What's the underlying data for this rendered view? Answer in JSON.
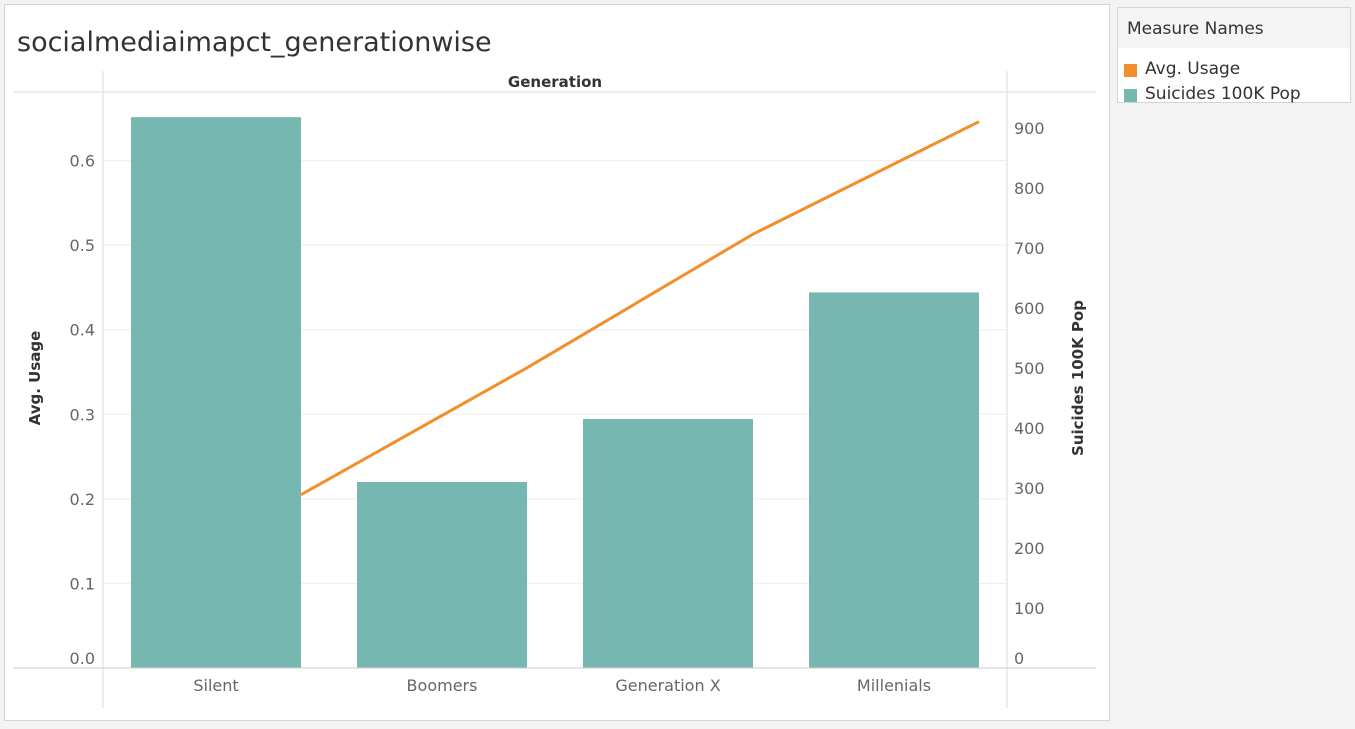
{
  "title": "socialmediaimapct_generationwise",
  "legend": {
    "title": "Measure Names",
    "items": [
      {
        "label": "Avg. Usage",
        "color": "#f28e2b"
      },
      {
        "label": "Suicides 100K Pop",
        "color": "#76b7b2"
      }
    ]
  },
  "chart_data": {
    "type": "bar",
    "column_header": "Generation",
    "categories": [
      "Silent",
      "Boomers",
      "Generation X",
      "Millenials"
    ],
    "xlabel": "",
    "ylabel_left": "Avg. Usage",
    "ylabel_right": "Suicides 100K Pop",
    "left_axis": {
      "min": 0,
      "max": 0.67,
      "ticks": [
        "0.0",
        "0.1",
        "0.2",
        "0.3",
        "0.4",
        "0.5",
        "0.6"
      ]
    },
    "right_axis": {
      "min": 0,
      "max": 1000,
      "ticks": [
        "0",
        "100",
        "200",
        "300",
        "400",
        "500",
        "600",
        "700",
        "800",
        "900"
      ]
    },
    "series": [
      {
        "name": "Suicides 100K Pop",
        "type": "bar",
        "axis": "right",
        "color": "#76b7b2",
        "values": [
          918,
          310,
          415,
          626
        ]
      },
      {
        "name": "Avg. Usage",
        "type": "line",
        "axis": "left",
        "color": "#f28e2b",
        "values": [
          0.205,
          0.355,
          0.513,
          0.646
        ]
      }
    ],
    "grid": true
  }
}
